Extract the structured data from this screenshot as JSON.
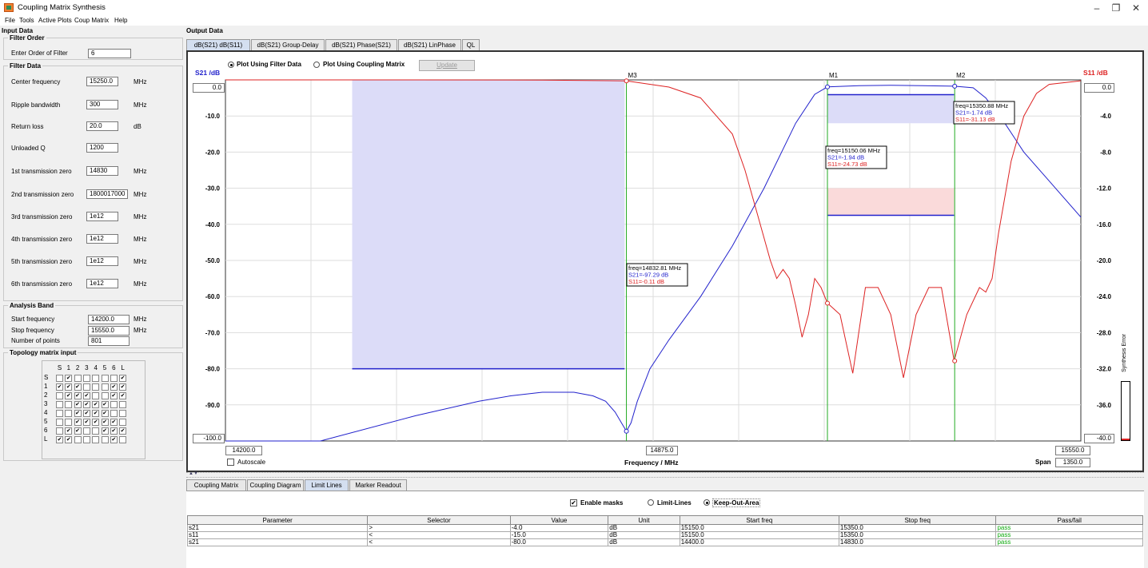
{
  "window": {
    "title": "Coupling Matrix Synthesis",
    "minimize": "–",
    "maximize": "❐",
    "close": "✕"
  },
  "menu": [
    "File",
    "Tools",
    "Active Plots",
    "Coup Matrix",
    "Help"
  ],
  "input_data": {
    "title": "Input Data",
    "filter_order": {
      "title": "Filter Order",
      "label": "Enter Order of Filter",
      "value": "6"
    },
    "filter_data": {
      "title": "Filter Data",
      "fields": [
        {
          "label": "Center frequency",
          "value": "15250.0",
          "unit": "MHz"
        },
        {
          "label": "Ripple bandwidth",
          "value": "300",
          "unit": "MHz"
        },
        {
          "label": "Return loss",
          "value": "20.0",
          "unit": "dB"
        },
        {
          "label": "Unloaded Q",
          "value": "1200",
          "unit": ""
        },
        {
          "label": "1st transmission zero",
          "value": "14830",
          "unit": "MHz"
        },
        {
          "label": "2nd transmission zero",
          "value": "1800017000",
          "unit": "MHz"
        },
        {
          "label": "3rd transmission zero",
          "value": "1e12",
          "unit": "MHz"
        },
        {
          "label": "4th transmission zero",
          "value": "1e12",
          "unit": "MHz"
        },
        {
          "label": "5th transmission zero",
          "value": "1e12",
          "unit": "MHz"
        },
        {
          "label": "6th transmission zero",
          "value": "1e12",
          "unit": "MHz"
        }
      ]
    },
    "analysis_band": {
      "title": "Analysis Band",
      "fields": [
        {
          "label": "Start frequency",
          "value": "14200.0",
          "unit": "MHz"
        },
        {
          "label": "Stop frequency",
          "value": "15550.0",
          "unit": "MHz"
        },
        {
          "label": "Number of points",
          "value": "801",
          "unit": ""
        }
      ]
    },
    "topology": {
      "title": "Topology matrix input",
      "headers": [
        "S",
        "1",
        "2",
        "3",
        "4",
        "5",
        "6",
        "L"
      ],
      "rows": [
        {
          "label": "S",
          "cells": [
            0,
            1,
            0,
            0,
            0,
            0,
            0,
            1
          ]
        },
        {
          "label": "1",
          "cells": [
            1,
            1,
            1,
            0,
            0,
            0,
            1,
            1
          ]
        },
        {
          "label": "2",
          "cells": [
            0,
            1,
            1,
            1,
            0,
            0,
            1,
            1
          ]
        },
        {
          "label": "3",
          "cells": [
            0,
            0,
            1,
            1,
            1,
            1,
            0,
            0
          ]
        },
        {
          "label": "4",
          "cells": [
            0,
            0,
            1,
            1,
            1,
            1,
            0,
            0
          ]
        },
        {
          "label": "5",
          "cells": [
            0,
            0,
            1,
            1,
            1,
            1,
            1,
            0
          ]
        },
        {
          "label": "6",
          "cells": [
            0,
            1,
            1,
            0,
            0,
            1,
            1,
            1
          ]
        },
        {
          "label": "L",
          "cells": [
            1,
            1,
            0,
            0,
            0,
            0,
            1,
            0
          ]
        }
      ],
      "check_glyph": "✔"
    }
  },
  "output": {
    "title": "Output Data",
    "tabs": [
      "dB(S21) dB(S11)",
      "dB(S21) Group-Delay",
      "dB(S21) Phase(S21)",
      "dB(S21) LinPhase",
      "QL"
    ],
    "radio_filter": "Plot Using Filter Data",
    "radio_coupling": "Plot Using Coupling Matrix",
    "update": "Update",
    "left_axis_title": "S21 /dB",
    "right_axis_title": "S11 /dB",
    "left_top_value": "0.0",
    "left_bottom_value": "-100.0",
    "right_top_value": "0.0",
    "right_bottom_value": "-40.0",
    "x_start": "14200.0",
    "x_mid": "14875.0",
    "x_end": "15550.0",
    "xlabel": "Frequency / MHz",
    "span_label": "Span",
    "span_value": "1350.0",
    "autoscale": "Autoscale",
    "synthesis_error": "Synthesis Error",
    "markers": [
      {
        "name": "M3",
        "freq": "freq=14832.81 MHz",
        "s21": "S21=-97.29 dB",
        "s11": "S11=-0.11 dB"
      },
      {
        "name": "M1",
        "freq": "freq=15150.06 MHz",
        "s21": "S21=-1.94 dB",
        "s11": "S11=-24.73 dB"
      },
      {
        "name": "M2",
        "freq": "freq=15350.88 MHz",
        "s21": "S21=-1.74 dB",
        "s11": "S11=-31.13 dB"
      }
    ]
  },
  "chart_data": {
    "type": "line",
    "xlabel": "Frequency / MHz",
    "ylabel": "S21 /dB",
    "y2label": "S11 /dB",
    "xlim": [
      14200,
      15550
    ],
    "ylim": [
      -100,
      0
    ],
    "y2lim": [
      -40,
      0
    ],
    "yticks": [
      0,
      -10,
      -20,
      -30,
      -40,
      -50,
      -60,
      -70,
      -80,
      -90,
      -100
    ],
    "y2ticks": [
      "0.0",
      "-4.0",
      "-8.0",
      "-12.0",
      "-16.0",
      "-20.0",
      "-24.0",
      "-28.0",
      "-32.0",
      "-36.0",
      "-40.0"
    ],
    "ytick_labels": [
      "0.0",
      "-10.0",
      "-20.0",
      "-30.0",
      "-40.0",
      "-50.0",
      "-60.0",
      "-70.0",
      "-80.0",
      "-90.0",
      "-100.0"
    ],
    "grid": true,
    "series": [
      {
        "name": "S21",
        "color": "#2222cc",
        "x": [
          14200,
          14350,
          14500,
          14600,
          14650,
          14700,
          14750,
          14780,
          14800,
          14815,
          14825,
          14832.8,
          14840,
          14850,
          14870,
          14900,
          14950,
          15000,
          15050,
          15100,
          15130,
          15150,
          15200,
          15250,
          15300,
          15350,
          15380,
          15400,
          15430,
          15460,
          15500,
          15550
        ],
        "y": [
          -100,
          -100,
          -93,
          -89,
          -87.5,
          -86.5,
          -86.5,
          -87.5,
          -89,
          -92,
          -95,
          -97.3,
          -95,
          -89,
          -80,
          -72,
          -60,
          -46,
          -30,
          -12,
          -4,
          -1.94,
          -1.6,
          -1.5,
          -1.6,
          -1.74,
          -2.2,
          -5,
          -12,
          -20,
          -28,
          -38
        ]
      },
      {
        "name": "S11",
        "color": "#dd2222",
        "x": [
          14200,
          14500,
          14700,
          14832.8,
          14900,
          14950,
          15000,
          15020,
          15040,
          15060,
          15070,
          15080,
          15090,
          15100,
          15110,
          15120,
          15130,
          15140,
          15150,
          15170,
          15190,
          15210,
          15230,
          15250,
          15270,
          15290,
          15310,
          15330,
          15350,
          15370,
          15390,
          15400,
          15410,
          15420,
          15440,
          15460,
          15480,
          15500,
          15550
        ],
        "y": [
          0,
          0,
          -0.02,
          -0.11,
          -0.8,
          -2,
          -6,
          -10,
          -15,
          -20,
          -22,
          -21,
          -22,
          -25,
          -28.5,
          -26,
          -22,
          -23,
          -24.73,
          -26,
          -32.5,
          -23,
          -23,
          -26,
          -33,
          -26,
          -23,
          -23,
          -31.13,
          -26,
          -23,
          -23.5,
          -22,
          -17,
          -9,
          -4,
          -1.5,
          -0.5,
          -0.1
        ]
      }
    ],
    "masks": [
      {
        "series": "S21",
        "selector": ">",
        "value": -4,
        "start": 15150,
        "stop": 15350
      },
      {
        "series": "S11",
        "selector": "<",
        "value": -15,
        "start": 15150,
        "stop": 15350
      },
      {
        "series": "S21",
        "selector": "<",
        "value": -80,
        "start": 14400,
        "stop": 14830
      }
    ],
    "marker_points": [
      {
        "name": "M3",
        "x": 14832.81,
        "s21": -97.29,
        "s11": -0.11
      },
      {
        "name": "M1",
        "x": 15150.06,
        "s21": -1.94,
        "s11": -24.73
      },
      {
        "name": "M2",
        "x": 15350.88,
        "s21": -1.74,
        "s11": -31.13
      }
    ]
  },
  "bottom": {
    "tabs": [
      "Coupling Matrix",
      "Coupling Diagram",
      "Limit Lines",
      "Marker Readout"
    ],
    "enable_masks": "Enable masks",
    "limit_lines": "Limit-Lines",
    "keep_out": "Keep-Out-Area",
    "columns": [
      "Parameter",
      "Selector",
      "Value",
      "Unit",
      "Start freq",
      "Stop freq",
      "Pass/fail"
    ],
    "rows": [
      [
        "s21",
        ">",
        "-4.0",
        "dB",
        "15150.0",
        "15350.0",
        "pass"
      ],
      [
        "s11",
        "<",
        "-15.0",
        "dB",
        "15150.0",
        "15350.0",
        "pass"
      ],
      [
        "s21",
        "<",
        "-80.0",
        "dB",
        "14400.0",
        "14830.0",
        "pass"
      ]
    ]
  }
}
